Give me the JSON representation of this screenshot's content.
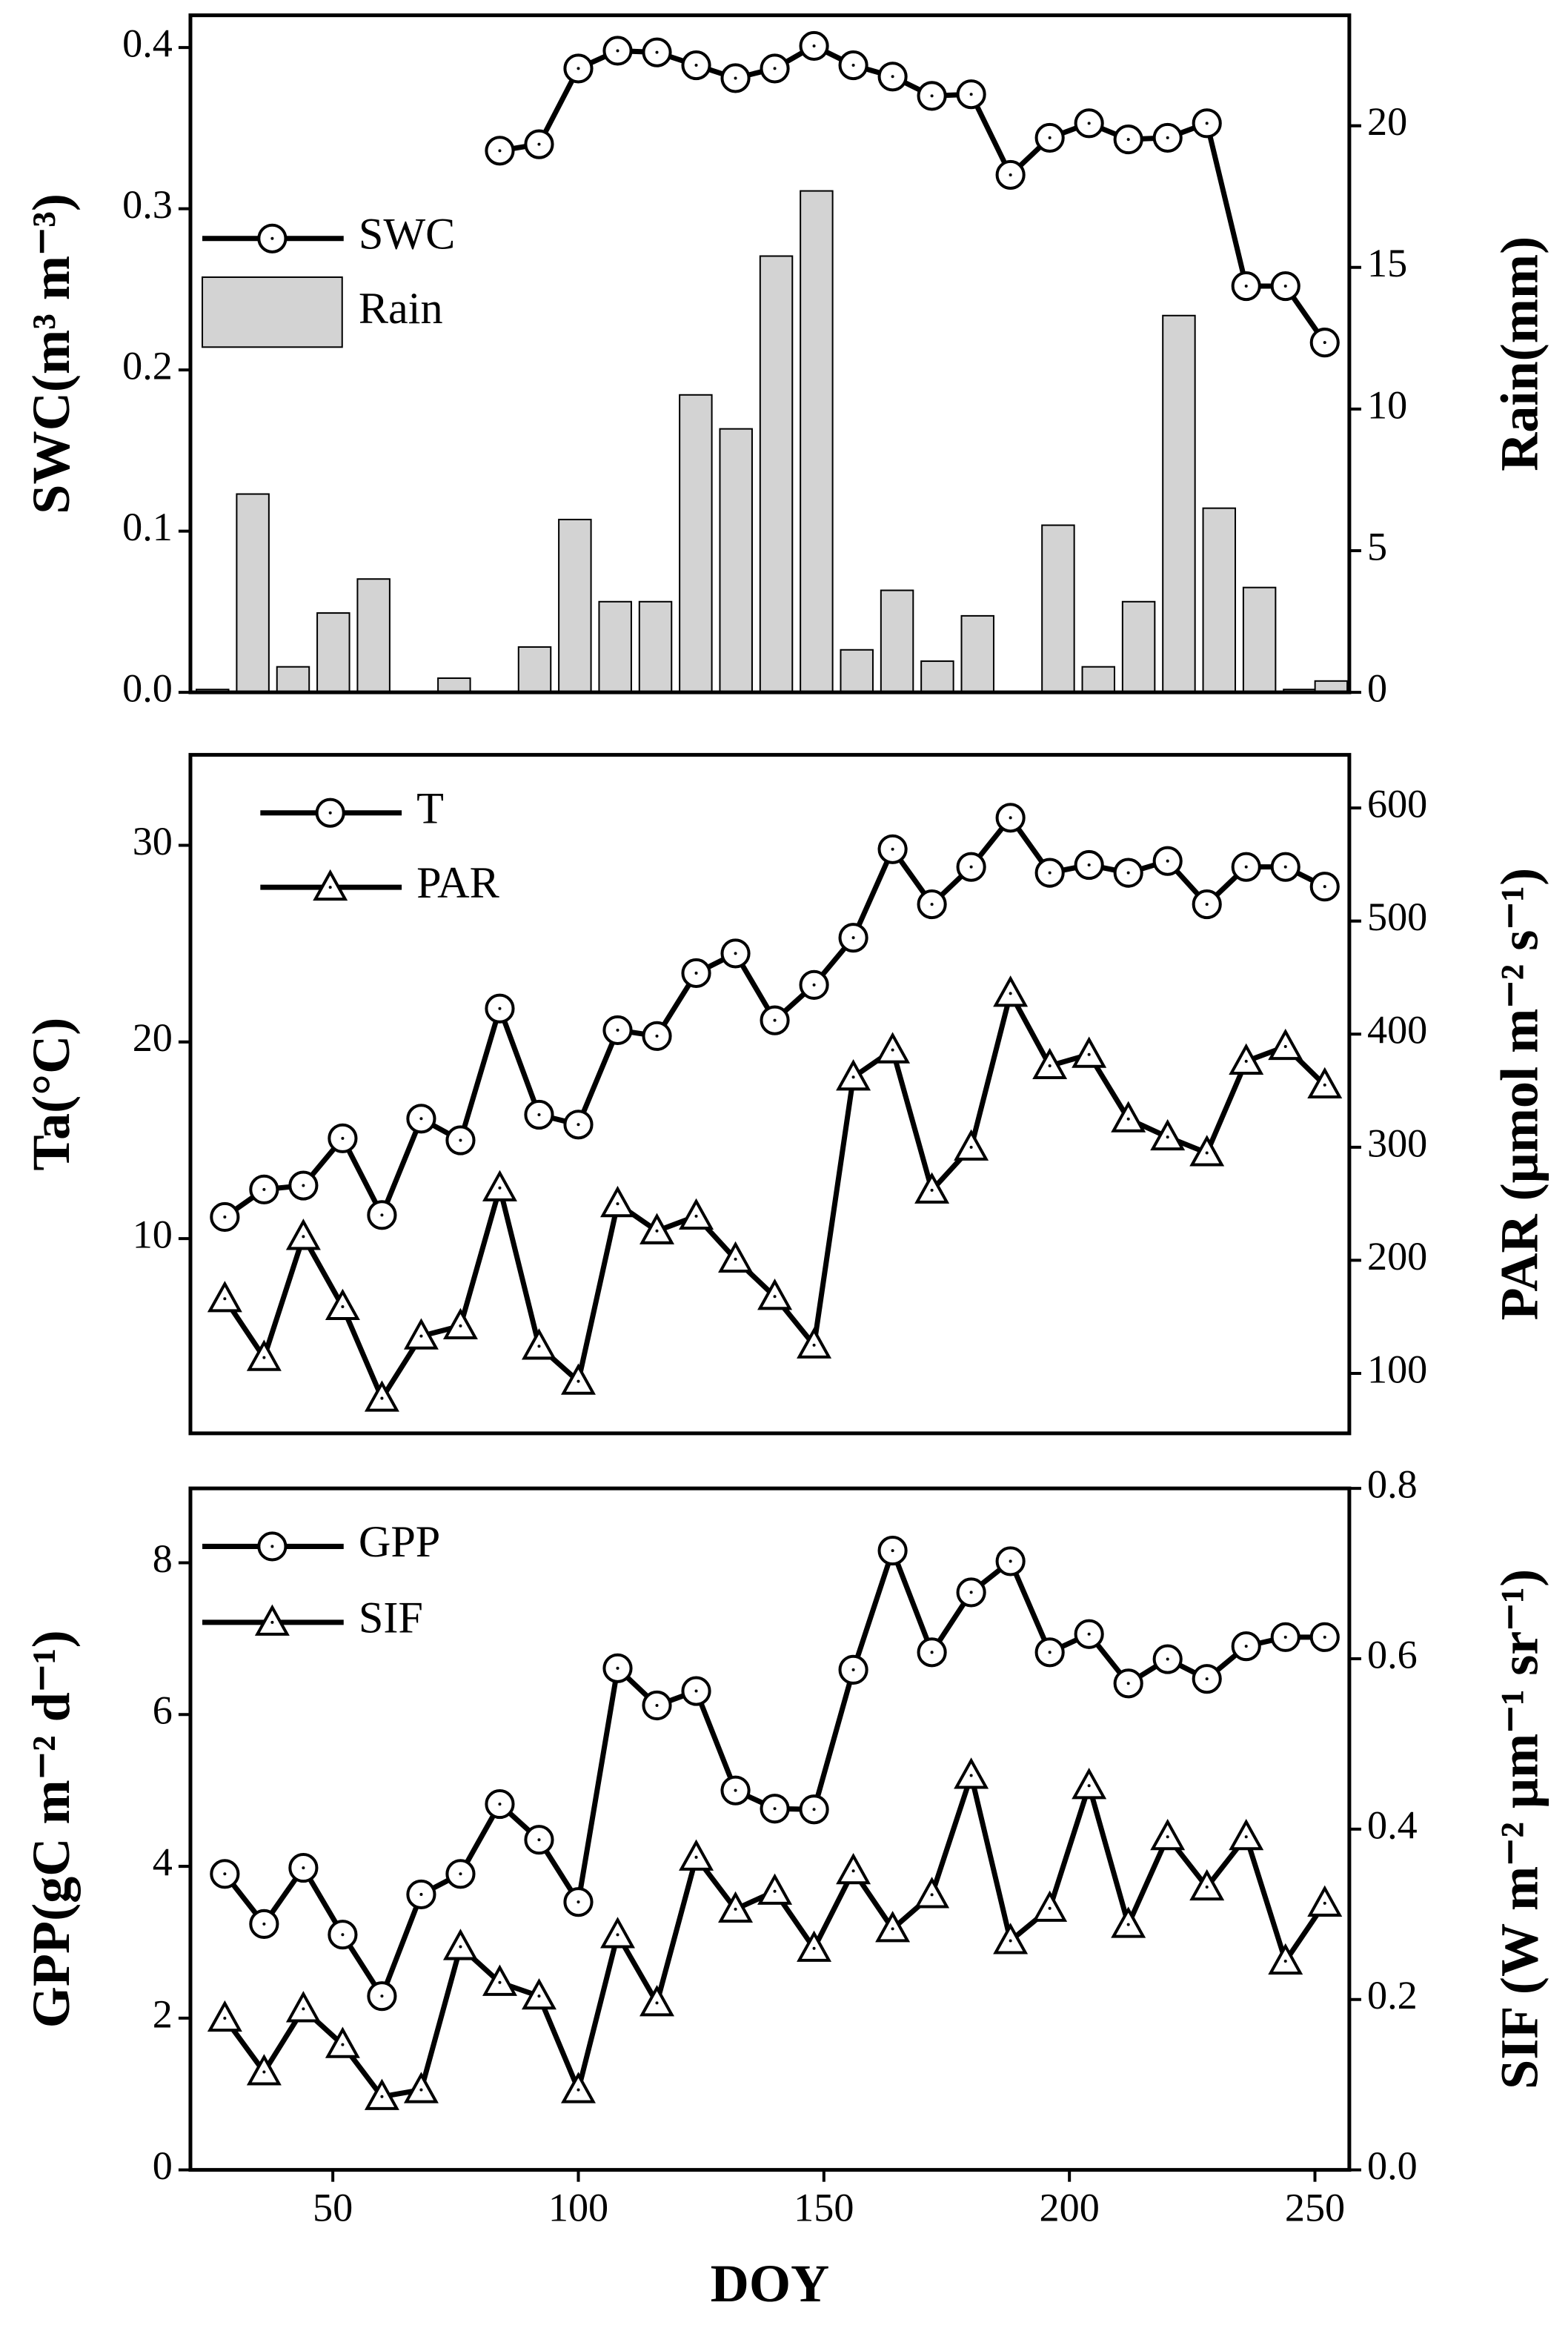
{
  "chart_data": [
    {
      "type": "line",
      "ylabel": "SWC(m³ m⁻³)",
      "y2label": "Rain(mm)",
      "xlim": [
        21,
        257
      ],
      "ylim": [
        0,
        0.42
      ],
      "y2lim": [
        0,
        23.9
      ],
      "yticks": [
        {
          "value": 0,
          "label": "0.0"
        },
        0.1,
        0.2,
        0.3,
        0.4
      ],
      "y2ticks": [
        0,
        5,
        10,
        15,
        20
      ],
      "x": [
        28,
        36,
        44,
        52,
        60,
        68,
        76,
        84,
        92,
        100,
        108,
        116,
        124,
        132,
        140,
        148,
        156,
        164,
        172,
        180,
        188,
        196,
        204,
        212,
        220,
        228,
        236,
        244,
        252
      ],
      "series": [
        {
          "name": "SWC",
          "type": "line",
          "marker": "circle",
          "color": "#000000",
          "values": [
            null,
            null,
            null,
            null,
            null,
            null,
            null,
            0.336,
            0.34,
            0.387,
            0.398,
            0.397,
            0.389,
            0.381,
            0.387,
            0.401,
            0.389,
            0.382,
            0.37,
            0.371,
            0.321,
            0.344,
            0.353,
            0.343,
            0.344,
            0.353,
            0.252,
            0.252,
            0.217
          ]
        },
        {
          "name": "Rain",
          "type": "bar",
          "axis": "y2",
          "color": "#d3d3d3",
          "x": [
            25.5,
            33.7,
            41.9,
            50.1,
            58.3,
            66.5,
            74.7,
            82.9,
            91.1,
            99.3,
            107.5,
            115.7,
            123.9,
            132.1,
            140.3,
            148.5,
            156.7,
            164.9,
            173.1,
            181.3,
            189.5,
            197.7,
            205.9,
            214.1,
            222.3,
            230.5,
            238.7,
            246.9,
            253.3
          ],
          "values": [
            0.1,
            7.0,
            0.9,
            2.8,
            4.0,
            0,
            0.5,
            0,
            1.6,
            6.1,
            3.2,
            3.2,
            10.5,
            9.3,
            15.4,
            17.7,
            1.5,
            3.6,
            1.1,
            2.7,
            0,
            5.9,
            0.9,
            3.2,
            13.3,
            6.5,
            3.7,
            0.1,
            0.4
          ]
        }
      ]
    },
    {
      "type": "line",
      "ylabel": "Ta(°C)",
      "y2label": "PAR (μmol m⁻² s⁻¹)",
      "xlim": [
        21,
        257
      ],
      "ylim": [
        0.1,
        34.6
      ],
      "y2lim": [
        47,
        647
      ],
      "yticks": [
        10,
        20,
        30
      ],
      "y2ticks": [
        100,
        200,
        300,
        400,
        500,
        600
      ],
      "x": [
        28,
        36,
        44,
        52,
        60,
        68,
        76,
        84,
        92,
        100,
        108,
        116,
        124,
        132,
        140,
        148,
        156,
        164,
        172,
        180,
        188,
        196,
        204,
        212,
        220,
        228,
        236,
        244,
        252
      ],
      "series": [
        {
          "name": "T",
          "type": "line",
          "marker": "circle",
          "color": "#000000",
          "values": [
            11.1,
            12.5,
            12.7,
            15.1,
            11.2,
            16.1,
            15.0,
            21.7,
            16.3,
            15.8,
            20.6,
            20.3,
            23.5,
            24.5,
            21.1,
            22.9,
            25.3,
            29.8,
            27.0,
            28.9,
            31.4,
            28.6,
            29.0,
            28.6,
            29.2,
            27.0,
            28.9,
            28.9,
            27.9
          ]
        },
        {
          "name": "PAR",
          "type": "line",
          "marker": "triangle",
          "axis": "y2",
          "color": "#000000",
          "values": [
            166,
            114,
            221,
            159,
            78,
            133,
            142,
            264,
            124,
            93,
            250,
            226,
            239,
            201,
            168,
            125,
            362,
            386,
            262,
            300,
            436,
            372,
            382,
            325,
            309,
            295,
            376,
            389,
            355
          ]
        }
      ]
    },
    {
      "type": "line",
      "ylabel": "GPP(gC m⁻² d⁻¹)",
      "y2label": "SIF (W m⁻² μm⁻¹ sr⁻¹)",
      "xlabel": "DOY",
      "xlim": [
        21,
        257
      ],
      "ylim": [
        0,
        8.98
      ],
      "y2lim": [
        0,
        0.8
      ],
      "xticks": [
        50,
        100,
        150,
        200,
        250
      ],
      "yticks": [
        0,
        2,
        4,
        6,
        8
      ],
      "y2ticks": [
        {
          "value": 0,
          "label": "0.0"
        },
        0.2,
        0.4,
        0.6,
        0.8
      ],
      "x": [
        28,
        36,
        44,
        52,
        60,
        68,
        76,
        84,
        92,
        100,
        108,
        116,
        124,
        132,
        140,
        148,
        156,
        164,
        172,
        180,
        188,
        196,
        204,
        212,
        220,
        228,
        236,
        244,
        252
      ],
      "series": [
        {
          "name": "GPP",
          "type": "line",
          "marker": "circle",
          "color": "#000000",
          "values": [
            3.9,
            3.24,
            3.98,
            3.1,
            2.29,
            3.63,
            3.9,
            4.82,
            4.35,
            3.53,
            6.61,
            6.12,
            6.31,
            5.0,
            4.76,
            4.75,
            6.59,
            8.16,
            6.82,
            7.61,
            8.02,
            6.82,
            7.06,
            6.41,
            6.73,
            6.47,
            6.9,
            7.02,
            7.02
          ]
        },
        {
          "name": "SIF",
          "type": "line",
          "marker": "triangle",
          "axis": "y2",
          "color": "#000000",
          "values": [
            0.178,
            0.115,
            0.189,
            0.147,
            0.086,
            0.094,
            0.262,
            0.22,
            0.204,
            0.094,
            0.276,
            0.196,
            0.367,
            0.306,
            0.327,
            0.26,
            0.351,
            0.283,
            0.323,
            0.463,
            0.269,
            0.307,
            0.451,
            0.288,
            0.391,
            0.332,
            0.391,
            0.245,
            0.313
          ]
        }
      ]
    }
  ]
}
